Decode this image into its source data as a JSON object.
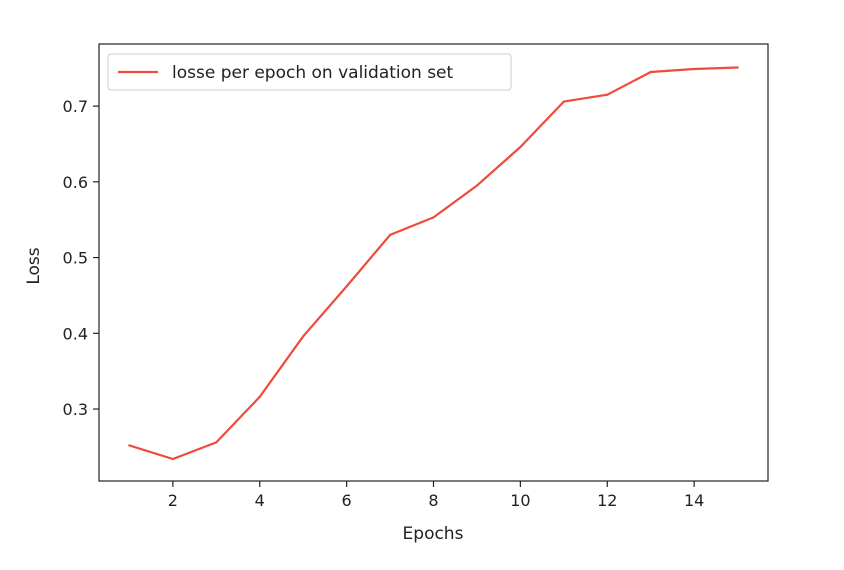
{
  "chart_data": {
    "type": "line",
    "title": "",
    "xlabel": "Epochs",
    "ylabel": "Loss",
    "xlim": [
      0.3,
      15.7
    ],
    "ylim": [
      0.205,
      0.782
    ],
    "xticks": [
      2,
      4,
      6,
      8,
      10,
      12,
      14
    ],
    "xtick_labels": [
      "2",
      "4",
      "6",
      "8",
      "10",
      "12",
      "14"
    ],
    "yticks": [
      0.3,
      0.4,
      0.5,
      0.6,
      0.7
    ],
    "ytick_labels": [
      "0.3",
      "0.4",
      "0.5",
      "0.6",
      "0.7"
    ],
    "grid": false,
    "legend_position": "top-left",
    "series": [
      {
        "name": "losse per epoch on validation set",
        "color": "#f04a3c",
        "x": [
          1,
          2,
          3,
          4,
          5,
          6,
          7,
          8,
          9,
          10,
          11,
          12,
          13,
          14,
          15
        ],
        "y": [
          0.252,
          0.234,
          0.256,
          0.316,
          0.396,
          0.462,
          0.53,
          0.553,
          0.595,
          0.646,
          0.706,
          0.715,
          0.745,
          0.749,
          0.751
        ]
      }
    ]
  }
}
